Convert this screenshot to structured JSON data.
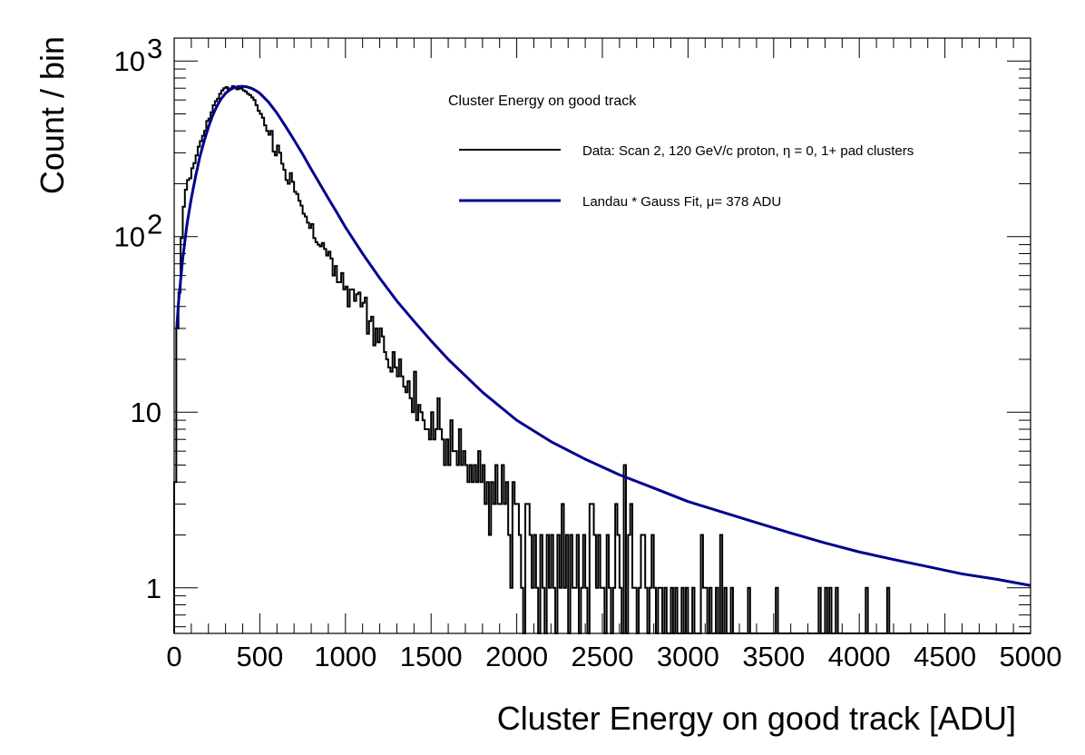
{
  "chart_data": {
    "type": "line",
    "title": "",
    "xlabel": "Cluster Energy on good track [ADU]",
    "ylabel": "Count / bin",
    "xlim": [
      0,
      5000
    ],
    "ylim": [
      0.55,
      1350
    ],
    "yscale": "log",
    "grid": false,
    "legend_placement": "top-right",
    "x_ticks": [
      0,
      500,
      1000,
      1500,
      2000,
      2500,
      3000,
      3500,
      4000,
      4500,
      5000
    ],
    "x_tick_labels": [
      "0",
      "500",
      "1000",
      "1500",
      "2000",
      "2500",
      "3000",
      "3500",
      "4000",
      "4500",
      "5000"
    ],
    "y_tick_labels": [
      {
        "value": 1,
        "base": "1",
        "exp": ""
      },
      {
        "value": 10,
        "base": "10",
        "exp": ""
      },
      {
        "value": 100,
        "base": "10",
        "exp": "2"
      },
      {
        "value": 1000,
        "base": "10",
        "exp": "3"
      }
    ],
    "legend": {
      "title": "Cluster Energy on good track",
      "entries": [
        {
          "label": "Data: Scan 2, 120 GeV/c proton,    η = 0, 1+ pad clusters",
          "color": "#000000"
        },
        {
          "label": "Landau * Gauss Fit,   μ= 378 ADU",
          "color": "#00008f"
        }
      ]
    },
    "series": [
      {
        "name": "Data: Scan 2, 120 GeV/c proton,    η = 0, 1+ pad clusters",
        "kind": "histogram",
        "color": "#000000",
        "bin_width": 12.5,
        "bin_starts": [
          0,
          12.5,
          25,
          37.5,
          50,
          62.5,
          75,
          87.5,
          100,
          112.5,
          125,
          137.5,
          150,
          162.5,
          175,
          187.5,
          200,
          212.5,
          225,
          237.5,
          250,
          262.5,
          275,
          287.5,
          300,
          312.5,
          325,
          337.5,
          350,
          362.5,
          375,
          387.5,
          400,
          412.5,
          425,
          437.5,
          450,
          462.5,
          475,
          487.5,
          500,
          512.5,
          525,
          537.5,
          550,
          562.5,
          575,
          587.5,
          600,
          612.5,
          625,
          637.5,
          650,
          662.5,
          675,
          687.5,
          700,
          712.5,
          725,
          737.5,
          750,
          762.5,
          775,
          787.5,
          800,
          812.5,
          825,
          837.5,
          850,
          862.5,
          875,
          887.5,
          900,
          912.5,
          925,
          937.5,
          950,
          962.5,
          975,
          987.5,
          1000,
          1012.5,
          1025,
          1037.5,
          1050,
          1062.5,
          1075,
          1087.5,
          1100,
          1112.5,
          1125,
          1137.5,
          1150,
          1162.5,
          1175,
          1187.5,
          1200,
          1212.5,
          1225,
          1237.5,
          1250,
          1262.5,
          1275,
          1287.5,
          1300,
          1312.5,
          1325,
          1337.5,
          1350,
          1362.5,
          1375,
          1387.5,
          1400,
          1412.5,
          1425,
          1437.5,
          1450,
          1462.5,
          1475,
          1487.5,
          1500,
          1512.5,
          1525,
          1537.5,
          1550,
          1562.5,
          1575,
          1587.5,
          1600,
          1612.5,
          1625,
          1637.5,
          1650,
          1662.5,
          1675,
          1687.5,
          1700,
          1712.5,
          1725,
          1737.5,
          1750,
          1762.5,
          1775,
          1787.5,
          1800,
          1812.5,
          1825,
          1837.5,
          1850,
          1862.5,
          1875,
          1887.5,
          1900,
          1912.5,
          1925,
          1937.5,
          1950,
          1962.5,
          1975,
          1987.5,
          2000,
          2012.5,
          2025,
          2037.5,
          2050,
          2062.5,
          2075,
          2087.5,
          2100,
          2112.5,
          2125,
          2137.5,
          2150,
          2162.5,
          2175,
          2187.5,
          2200,
          2212.5,
          2225,
          2237.5,
          2250,
          2262.5,
          2275,
          2287.5,
          2300,
          2312.5,
          2325,
          2337.5,
          2350,
          2362.5,
          2375,
          2387.5,
          2400,
          2412.5,
          2425,
          2437.5,
          2450,
          2462.5,
          2475,
          2487.5,
          2500,
          2512.5,
          2525,
          2537.5,
          2550,
          2562.5,
          2575,
          2587.5,
          2600,
          2612.5,
          2625,
          2637.5,
          2650,
          2662.5,
          2675,
          2687.5,
          2700,
          2712.5,
          2725,
          2737.5,
          2750,
          2762.5,
          2775,
          2787.5,
          2800,
          2812.5,
          2825,
          2837.5,
          2850,
          2862.5,
          2875,
          2887.5,
          2900,
          2912.5,
          2925,
          2937.5,
          2950,
          2962.5,
          2975,
          2987.5,
          3000,
          3012.5,
          3025,
          3037.5,
          3050,
          3062.5,
          3075,
          3087.5,
          3100,
          3112.5,
          3125,
          3137.5,
          3150,
          3162.5,
          3175,
          3187.5,
          3200,
          3212.5,
          3225,
          3237.5,
          3250,
          3262.5,
          3275,
          3287.5,
          3300,
          3312.5,
          3325,
          3337.5,
          3350,
          3362.5,
          3375,
          3387.5,
          3400,
          3412.5,
          3425,
          3437.5,
          3450,
          3462.5,
          3475,
          3487.5,
          3500,
          3512.5,
          3525,
          3537.5,
          3550,
          3562.5,
          3575,
          3587.5,
          3600,
          3612.5,
          3625,
          3637.5,
          3650,
          3662.5,
          3675,
          3687.5,
          3700,
          3712.5,
          3725,
          3737.5,
          3750,
          3762.5,
          3775,
          3787.5,
          3800,
          3812.5,
          3825,
          3837.5,
          3850,
          3862.5,
          3875,
          3887.5,
          3900,
          3912.5,
          3925,
          3937.5,
          3950,
          3962.5,
          3975,
          3987.5,
          4000,
          4012.5,
          4025,
          4037.5,
          4050,
          4062.5,
          4075,
          4087.5,
          4100,
          4112.5,
          4125,
          4137.5,
          4150,
          4162.5,
          4175,
          4187.5,
          4200,
          4212.5,
          4225,
          4237.5,
          4250,
          4262.5,
          4275,
          4287.5,
          4300,
          4312.5,
          4325,
          4337.5,
          4350,
          4362.5,
          4375,
          4387.5,
          4400,
          4412.5,
          4425,
          4437.5,
          4450,
          4462.5,
          4475,
          4487.5,
          4500,
          4512.5,
          4525,
          4537.5,
          4550,
          4562.5,
          4575,
          4587.5,
          4600,
          4612.5,
          4625,
          4637.5,
          4650,
          4662.5,
          4675,
          4687.5,
          4700,
          4712.5,
          4725,
          4737.5,
          4750,
          4762.5,
          4775,
          4787.5,
          4800,
          4812.5,
          4825,
          4837.5,
          4850,
          4862.5,
          4875,
          4887.5,
          4900,
          4912.5,
          4925,
          4937.5,
          4950,
          4962.5,
          4975,
          4987.5
        ],
        "counts": [
          4,
          30,
          48,
          98,
          148,
          185,
          210,
          215,
          245,
          262,
          290,
          325,
          350,
          375,
          400,
          455,
          470,
          510,
          560,
          590,
          610,
          650,
          680,
          700,
          710,
          690,
          700,
          720,
          705,
          690,
          695,
          700,
          680,
          670,
          650,
          640,
          620,
          600,
          560,
          520,
          500,
          475,
          430,
          400,
          380,
          400,
          305,
          290,
          330,
          300,
          260,
          240,
          210,
          200,
          230,
          205,
          180,
          175,
          160,
          150,
          135,
          130,
          120,
          112,
          118,
          98,
          93,
          90,
          88,
          92,
          85,
          78,
          82,
          75,
          60,
          68,
          55,
          55,
          62,
          50,
          52,
          40,
          50,
          50,
          43,
          47,
          48,
          40,
          42,
          45,
          28,
          33,
          35,
          24,
          30,
          25,
          30,
          27,
          22,
          20,
          18,
          17,
          22,
          18,
          16,
          20,
          16,
          14,
          13,
          15,
          12,
          10,
          17,
          9,
          11,
          10,
          9,
          8,
          8,
          7,
          10,
          7,
          8,
          12,
          8,
          7,
          5,
          7,
          5,
          9,
          6,
          6,
          5,
          8,
          5,
          6,
          5,
          4,
          5,
          4,
          5,
          4,
          6,
          4,
          5,
          3,
          4,
          2,
          4,
          3,
          5,
          3,
          3,
          5,
          3,
          4,
          2,
          1,
          4,
          3,
          3,
          2,
          1,
          0,
          3,
          3,
          2,
          1,
          2,
          1,
          0,
          2,
          1,
          0,
          2,
          1,
          2,
          1,
          0,
          2,
          1,
          3,
          1,
          2,
          0,
          2,
          1,
          1,
          2,
          0,
          1,
          2,
          1,
          0,
          3,
          3,
          2,
          1,
          2,
          1,
          1,
          0,
          2,
          1,
          0,
          1,
          3,
          2,
          1,
          0,
          5,
          0,
          2,
          3,
          1,
          1,
          0,
          1,
          2,
          2,
          1,
          0,
          1,
          2,
          1,
          0,
          1,
          1,
          0,
          1,
          0,
          0,
          1,
          0,
          1,
          0,
          0,
          1,
          0,
          1,
          0,
          0,
          1,
          0,
          0,
          0,
          2,
          1,
          1,
          0,
          1,
          0,
          0,
          1,
          0,
          2,
          0,
          1,
          0,
          0,
          1,
          0,
          0,
          0,
          0,
          0,
          0,
          0,
          1,
          0,
          0,
          0,
          0,
          0,
          0,
          0,
          0,
          0,
          0,
          0,
          0,
          1,
          0,
          0,
          0,
          0,
          0,
          0,
          0,
          0,
          0,
          0,
          0,
          0,
          0,
          0,
          0,
          0,
          0,
          0,
          0,
          1,
          0,
          0,
          1,
          0,
          1,
          0,
          0,
          1,
          0,
          0,
          0,
          0,
          0,
          0,
          0,
          0,
          0,
          0,
          0,
          0,
          0,
          1,
          0,
          0,
          0,
          0,
          0,
          0,
          0,
          0,
          0,
          1,
          0,
          0,
          0,
          0,
          0,
          0,
          0,
          0,
          0,
          0,
          0,
          0,
          0,
          0,
          0,
          0,
          0,
          0,
          0,
          0,
          0,
          0,
          0,
          0,
          0,
          0,
          0,
          0,
          0,
          0,
          0,
          0,
          0,
          0,
          0,
          0,
          0,
          0,
          0,
          0,
          0,
          0,
          0,
          0,
          0,
          0,
          0,
          0,
          0,
          0,
          0,
          0,
          0,
          0,
          0,
          0,
          0,
          0,
          0,
          0,
          0,
          0,
          0,
          0,
          0,
          0,
          0,
          0,
          0,
          0,
          0,
          0,
          0,
          0,
          0,
          0,
          0,
          0,
          0,
          0,
          0,
          0,
          0,
          0,
          0,
          0,
          0,
          0,
          0,
          0,
          0,
          0,
          0,
          0,
          0,
          0,
          0,
          0,
          0,
          0,
          0,
          0,
          0,
          0,
          0,
          0,
          0,
          0
        ]
      },
      {
        "name": "Landau * Gauss Fit,   μ= 378 ADU",
        "kind": "curve",
        "color": "#00008f",
        "x": [
          15,
          25,
          50,
          75,
          100,
          125,
          150,
          175,
          200,
          225,
          250,
          275,
          300,
          325,
          350,
          375,
          400,
          425,
          450,
          475,
          500,
          550,
          600,
          650,
          700,
          750,
          800,
          850,
          900,
          950,
          1000,
          1100,
          1200,
          1300,
          1400,
          1500,
          1600,
          1800,
          2000,
          2200,
          2400,
          2600,
          2800,
          3000,
          3200,
          3400,
          3600,
          3800,
          4000,
          4200,
          4400,
          4600,
          4800,
          5000
        ],
        "y": [
          30,
          42,
          75,
          118,
          165,
          220,
          285,
          350,
          420,
          490,
          555,
          610,
          655,
          685,
          705,
          715,
          718,
          712,
          700,
          680,
          655,
          585,
          505,
          425,
          355,
          295,
          242,
          200,
          165,
          137,
          113,
          80,
          58,
          43,
          33,
          25.5,
          20,
          13,
          9,
          6.8,
          5.4,
          4.4,
          3.7,
          3.1,
          2.7,
          2.35,
          2.05,
          1.8,
          1.6,
          1.45,
          1.32,
          1.2,
          1.12,
          1.03
        ]
      }
    ]
  }
}
